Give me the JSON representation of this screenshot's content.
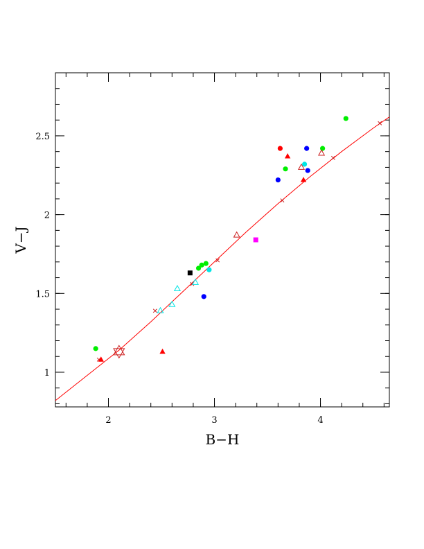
{
  "chart_data": {
    "type": "scatter",
    "xlabel": "B−H",
    "ylabel": "V−J",
    "xlim": [
      1.5,
      4.65
    ],
    "ylim": [
      0.78,
      2.9
    ],
    "x_ticks": [
      {
        "value": 2,
        "label": "2"
      },
      {
        "value": 3,
        "label": "3"
      },
      {
        "value": 4,
        "label": "4"
      }
    ],
    "y_ticks": [
      {
        "value": 1,
        "label": "1"
      },
      {
        "value": 1.5,
        "label": "1.5"
      },
      {
        "value": 2,
        "label": "2"
      },
      {
        "value": 2.5,
        "label": "2.5"
      }
    ],
    "x_minor_step": 0.2,
    "y_minor_step": 0.1,
    "grid": false,
    "colors": {
      "red": "#ff0000",
      "green": "#00ee00",
      "blue": "#0000ff",
      "cyan": "#00e5e5",
      "black": "#000000",
      "magenta": "#ff00ff",
      "darkred": "#cc2020",
      "curve": "#ff0000"
    },
    "curve": {
      "x": [
        1.5,
        1.8,
        2.1,
        2.4,
        2.7,
        3.0,
        3.3,
        3.6,
        3.9,
        4.2,
        4.5,
        4.65
      ],
      "y": [
        0.82,
        0.98,
        1.14,
        1.32,
        1.51,
        1.7,
        1.89,
        2.07,
        2.24,
        2.4,
        2.55,
        2.62
      ]
    },
    "curve_markers": {
      "shape": "cross",
      "color": "darkred",
      "points": [
        [
          1.91,
          1.08
        ],
        [
          2.44,
          1.39
        ],
        [
          2.79,
          1.56
        ],
        [
          3.03,
          1.71
        ],
        [
          3.64,
          2.09
        ],
        [
          4.12,
          2.36
        ],
        [
          4.56,
          2.58
        ]
      ]
    },
    "star": {
      "x": 2.1,
      "y": 1.13,
      "color": "darkred"
    },
    "series": [
      {
        "shape": "circle",
        "color": "green",
        "points": [
          [
            1.88,
            1.15
          ],
          [
            2.85,
            1.66
          ],
          [
            2.88,
            1.68
          ],
          [
            2.92,
            1.69
          ],
          [
            3.67,
            2.29
          ],
          [
            4.02,
            2.42
          ],
          [
            4.24,
            2.61
          ]
        ]
      },
      {
        "shape": "triangle",
        "color": "red",
        "points": [
          [
            1.93,
            1.08
          ],
          [
            2.51,
            1.13
          ],
          [
            3.69,
            2.37
          ],
          [
            3.84,
            2.22
          ]
        ]
      },
      {
        "shape": "circle",
        "color": "blue",
        "points": [
          [
            2.9,
            1.48
          ],
          [
            3.6,
            2.22
          ],
          [
            3.87,
            2.42
          ],
          [
            3.88,
            2.28
          ]
        ]
      },
      {
        "shape": "circle",
        "color": "cyan",
        "points": [
          [
            2.95,
            1.65
          ],
          [
            3.85,
            2.32
          ]
        ]
      },
      {
        "shape": "circle",
        "color": "red",
        "points": [
          [
            3.62,
            2.42
          ]
        ]
      },
      {
        "shape": "square",
        "color": "black",
        "points": [
          [
            2.77,
            1.63
          ]
        ]
      },
      {
        "shape": "square",
        "color": "magenta",
        "points": [
          [
            3.39,
            1.84
          ]
        ]
      },
      {
        "shape": "open-triangle",
        "color": "cyan",
        "points": [
          [
            2.49,
            1.39
          ],
          [
            2.6,
            1.43
          ],
          [
            2.65,
            1.53
          ],
          [
            2.82,
            1.57
          ]
        ]
      },
      {
        "shape": "open-triangle",
        "color": "darkred",
        "points": [
          [
            3.21,
            1.87
          ],
          [
            3.82,
            2.3
          ],
          [
            4.01,
            2.39
          ]
        ]
      }
    ]
  }
}
